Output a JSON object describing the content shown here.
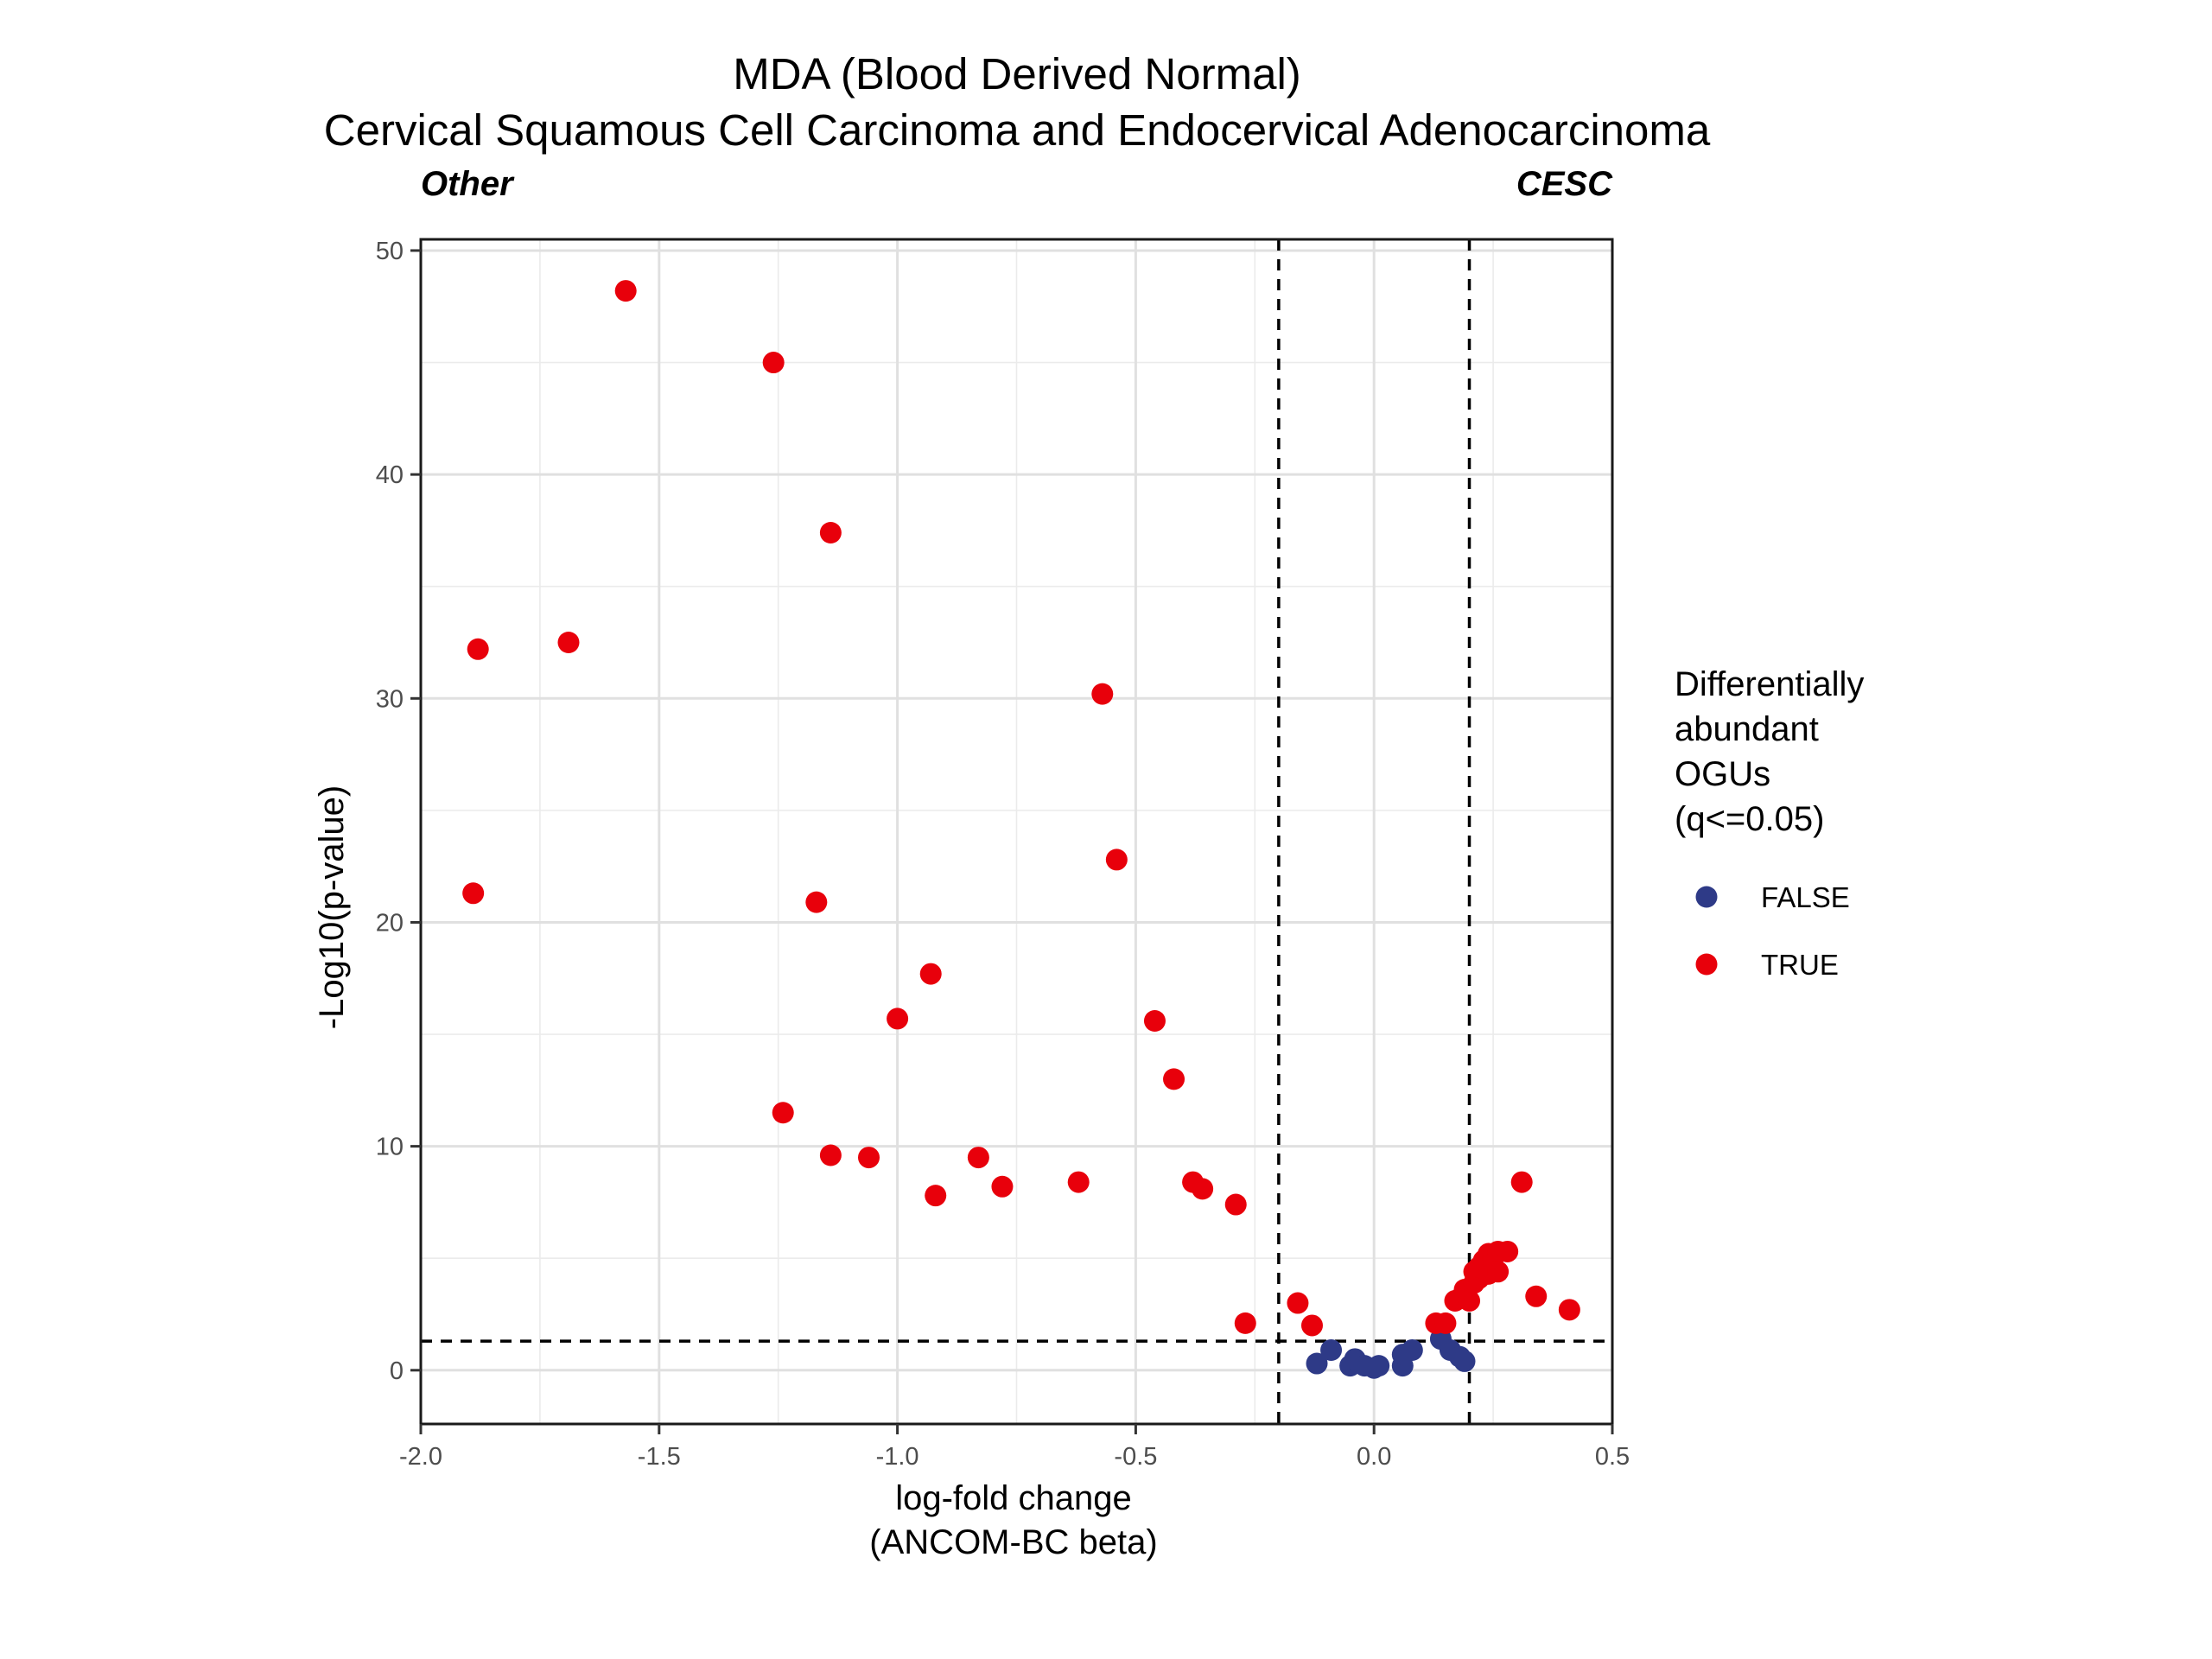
{
  "chart_data": {
    "type": "scatter",
    "title": "MDA (Blood Derived Normal)",
    "subtitle": "Cervical Squamous Cell Carcinoma and Endocervical Adenocarcinoma",
    "annotations": {
      "left": "Other",
      "right": "CESC"
    },
    "xlabel": "log-fold change",
    "xlabel2": "(ANCOM-BC beta)",
    "ylabel": "-Log10(p-value)",
    "xlim": [
      -2.0,
      0.5
    ],
    "ylim": [
      -2.4,
      50.5
    ],
    "xticks": [
      -2.0,
      -1.5,
      -1.0,
      -0.5,
      0.0,
      0.5
    ],
    "xtick_labels": [
      "-2.0",
      "-1.5",
      "-1.0",
      "-0.5",
      "0.0",
      "0.5"
    ],
    "yticks": [
      0,
      10,
      20,
      30,
      40,
      50
    ],
    "ytick_labels": [
      "0",
      "10",
      "20",
      "30",
      "40",
      "50"
    ],
    "grid": true,
    "reference_lines": {
      "x": [
        -0.2,
        0.2
      ],
      "y": [
        1.3
      ]
    },
    "legend": {
      "title_lines": [
        "Differentially",
        "abundant",
        "OGUs",
        "(q<=0.05)"
      ],
      "position": "right",
      "entries": [
        {
          "label": "FALSE",
          "color": "#2e3a87"
        },
        {
          "label": "TRUE",
          "color": "#e8000b"
        }
      ]
    },
    "series": [
      {
        "name": "FALSE",
        "color": "#2e3a87",
        "points": [
          [
            -0.12,
            0.3
          ],
          [
            -0.09,
            0.9
          ],
          [
            -0.05,
            0.2
          ],
          [
            -0.04,
            0.5
          ],
          [
            -0.02,
            0.2
          ],
          [
            0.0,
            0.1
          ],
          [
            0.01,
            0.2
          ],
          [
            0.06,
            0.2
          ],
          [
            0.06,
            0.7
          ],
          [
            0.08,
            0.9
          ],
          [
            0.14,
            1.4
          ],
          [
            0.16,
            0.9
          ],
          [
            0.18,
            0.6
          ],
          [
            0.19,
            0.4
          ]
        ]
      },
      {
        "name": "TRUE",
        "color": "#e8000b",
        "points": [
          [
            -1.57,
            48.2
          ],
          [
            -1.26,
            45.0
          ],
          [
            -1.14,
            37.4
          ],
          [
            -1.69,
            32.5
          ],
          [
            -1.88,
            32.2
          ],
          [
            -0.57,
            30.2
          ],
          [
            -0.54,
            22.8
          ],
          [
            -1.89,
            21.3
          ],
          [
            -1.17,
            20.9
          ],
          [
            -0.93,
            17.7
          ],
          [
            -1.0,
            15.7
          ],
          [
            -0.46,
            15.6
          ],
          [
            -0.42,
            13.0
          ],
          [
            -1.24,
            11.5
          ],
          [
            -1.14,
            9.6
          ],
          [
            -1.06,
            9.5
          ],
          [
            -0.83,
            9.5
          ],
          [
            -0.92,
            7.8
          ],
          [
            -0.78,
            8.2
          ],
          [
            -0.62,
            8.4
          ],
          [
            -0.38,
            8.4
          ],
          [
            -0.36,
            8.1
          ],
          [
            -0.29,
            7.4
          ],
          [
            -0.27,
            2.1
          ],
          [
            -0.16,
            3.0
          ],
          [
            -0.13,
            2.0
          ],
          [
            0.13,
            2.1
          ],
          [
            0.15,
            2.1
          ],
          [
            0.17,
            3.1
          ],
          [
            0.18,
            3.2
          ],
          [
            0.19,
            3.6
          ],
          [
            0.2,
            3.1
          ],
          [
            0.21,
            3.9
          ],
          [
            0.21,
            4.4
          ],
          [
            0.22,
            4.1
          ],
          [
            0.22,
            4.6
          ],
          [
            0.23,
            4.9
          ],
          [
            0.24,
            5.2
          ],
          [
            0.24,
            4.3
          ],
          [
            0.25,
            5.0
          ],
          [
            0.26,
            5.3
          ],
          [
            0.26,
            4.4
          ],
          [
            0.28,
            5.3
          ],
          [
            0.31,
            8.4
          ],
          [
            0.34,
            3.3
          ],
          [
            0.41,
            2.7
          ]
        ]
      }
    ]
  }
}
